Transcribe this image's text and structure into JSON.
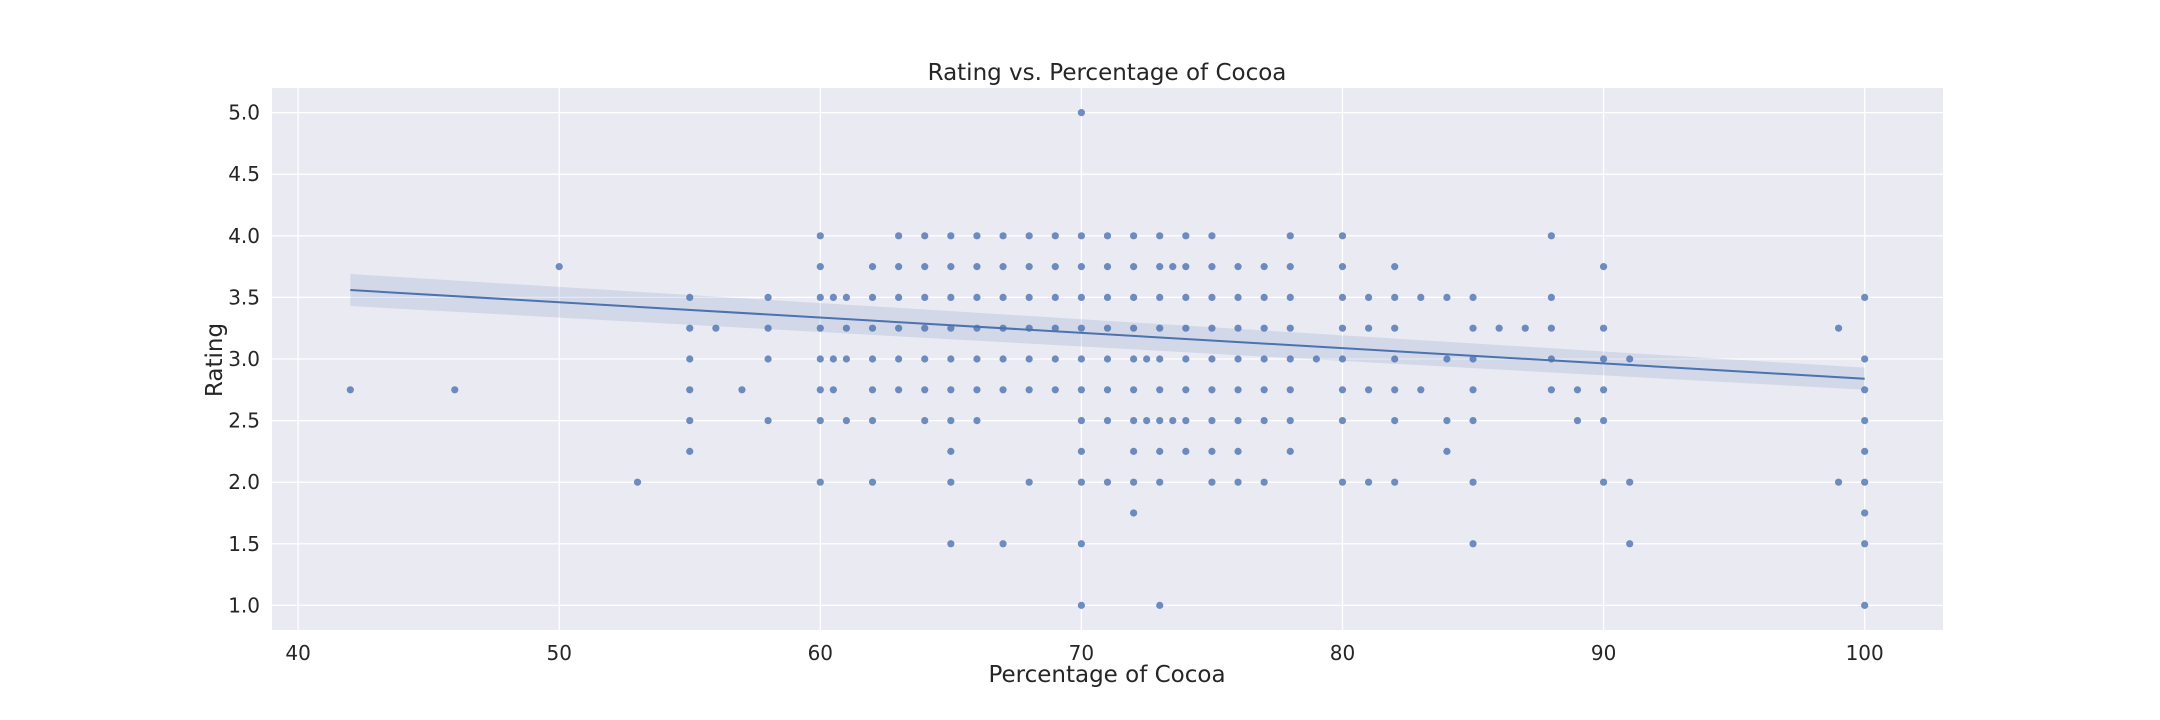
{
  "colors": {
    "background": "#ffffff",
    "plot_background": "#eaeaf2",
    "grid": "#ffffff",
    "points": "#4c72b0",
    "regression_line": "#4c72b0",
    "confidence_band": "#4c72b0",
    "text": "#262626"
  },
  "chart_data": {
    "type": "scatter",
    "title": "Rating vs. Percentage of Cocoa",
    "xlabel": "Percentage of Cocoa",
    "ylabel": "Rating",
    "xlim": [
      39,
      103
    ],
    "ylim": [
      0.8,
      5.2
    ],
    "xticks": [
      40,
      50,
      60,
      70,
      80,
      90,
      100
    ],
    "yticks": [
      1.0,
      1.5,
      2.0,
      2.5,
      3.0,
      3.5,
      4.0,
      4.5,
      5.0
    ],
    "ytick_labels": [
      "1.0",
      "1.5",
      "2.0",
      "2.5",
      "3.0",
      "3.5",
      "4.0",
      "4.5",
      "5.0"
    ],
    "grid": true,
    "series": [
      {
        "points": [
          [
            42,
            2.75
          ],
          [
            46,
            2.75
          ],
          [
            50,
            3.75
          ],
          [
            53,
            2.0
          ],
          [
            55,
            3.5
          ],
          [
            55,
            3.25
          ],
          [
            55,
            3.0
          ],
          [
            55,
            2.75
          ],
          [
            55,
            2.5
          ],
          [
            55,
            2.25
          ],
          [
            56,
            3.25
          ],
          [
            57,
            2.75
          ],
          [
            58,
            3.5
          ],
          [
            58,
            3.25
          ],
          [
            58,
            3.0
          ],
          [
            58,
            2.5
          ],
          [
            60,
            4.0
          ],
          [
            60,
            3.75
          ],
          [
            60,
            3.5
          ],
          [
            60,
            3.25
          ],
          [
            60,
            3.0
          ],
          [
            60,
            2.75
          ],
          [
            60,
            2.5
          ],
          [
            60,
            2.0
          ],
          [
            60.5,
            3.5
          ],
          [
            60.5,
            3.0
          ],
          [
            60.5,
            2.75
          ],
          [
            61,
            3.5
          ],
          [
            61,
            3.25
          ],
          [
            61,
            3.0
          ],
          [
            61,
            2.5
          ],
          [
            62,
            3.75
          ],
          [
            62,
            3.5
          ],
          [
            62,
            3.25
          ],
          [
            62,
            3.0
          ],
          [
            62,
            2.75
          ],
          [
            62,
            2.5
          ],
          [
            62,
            2.0
          ],
          [
            63,
            4.0
          ],
          [
            63,
            3.75
          ],
          [
            63,
            3.5
          ],
          [
            63,
            3.25
          ],
          [
            63,
            3.0
          ],
          [
            63,
            2.75
          ],
          [
            64,
            4.0
          ],
          [
            64,
            3.75
          ],
          [
            64,
            3.5
          ],
          [
            64,
            3.25
          ],
          [
            64,
            3.0
          ],
          [
            64,
            2.75
          ],
          [
            64,
            2.5
          ],
          [
            65,
            4.0
          ],
          [
            65,
            3.75
          ],
          [
            65,
            3.5
          ],
          [
            65,
            3.25
          ],
          [
            65,
            3.0
          ],
          [
            65,
            2.75
          ],
          [
            65,
            2.5
          ],
          [
            65,
            2.25
          ],
          [
            65,
            2.0
          ],
          [
            65,
            1.5
          ],
          [
            66,
            4.0
          ],
          [
            66,
            3.75
          ],
          [
            66,
            3.5
          ],
          [
            66,
            3.25
          ],
          [
            66,
            3.0
          ],
          [
            66,
            2.75
          ],
          [
            66,
            2.5
          ],
          [
            67,
            4.0
          ],
          [
            67,
            3.75
          ],
          [
            67,
            3.5
          ],
          [
            67,
            3.25
          ],
          [
            67,
            3.0
          ],
          [
            67,
            2.75
          ],
          [
            67,
            1.5
          ],
          [
            68,
            4.0
          ],
          [
            68,
            3.75
          ],
          [
            68,
            3.5
          ],
          [
            68,
            3.25
          ],
          [
            68,
            3.0
          ],
          [
            68,
            2.75
          ],
          [
            68,
            2.0
          ],
          [
            69,
            4.0
          ],
          [
            69,
            3.75
          ],
          [
            69,
            3.5
          ],
          [
            69,
            3.25
          ],
          [
            69,
            3.0
          ],
          [
            69,
            2.75
          ],
          [
            70,
            5.0
          ],
          [
            70,
            4.0
          ],
          [
            70,
            3.75
          ],
          [
            70,
            3.5
          ],
          [
            70,
            3.25
          ],
          [
            70,
            3.0
          ],
          [
            70,
            2.75
          ],
          [
            70,
            2.5
          ],
          [
            70,
            2.25
          ],
          [
            70,
            2.0
          ],
          [
            70,
            1.5
          ],
          [
            70,
            1.0
          ],
          [
            71,
            4.0
          ],
          [
            71,
            3.75
          ],
          [
            71,
            3.5
          ],
          [
            71,
            3.25
          ],
          [
            71,
            3.0
          ],
          [
            71,
            2.75
          ],
          [
            71,
            2.5
          ],
          [
            71,
            2.0
          ],
          [
            72,
            4.0
          ],
          [
            72,
            3.75
          ],
          [
            72,
            3.5
          ],
          [
            72,
            3.25
          ],
          [
            72,
            3.0
          ],
          [
            72,
            2.75
          ],
          [
            72,
            2.5
          ],
          [
            72,
            2.25
          ],
          [
            72,
            2.0
          ],
          [
            72,
            1.75
          ],
          [
            72.5,
            3.0
          ],
          [
            72.5,
            2.5
          ],
          [
            73,
            4.0
          ],
          [
            73,
            3.75
          ],
          [
            73,
            3.5
          ],
          [
            73,
            3.25
          ],
          [
            73,
            3.0
          ],
          [
            73,
            2.75
          ],
          [
            73,
            2.5
          ],
          [
            73,
            2.25
          ],
          [
            73,
            2.0
          ],
          [
            73,
            1.0
          ],
          [
            73.5,
            3.75
          ],
          [
            73.5,
            2.5
          ],
          [
            74,
            4.0
          ],
          [
            74,
            3.75
          ],
          [
            74,
            3.5
          ],
          [
            74,
            3.25
          ],
          [
            74,
            3.0
          ],
          [
            74,
            2.75
          ],
          [
            74,
            2.5
          ],
          [
            74,
            2.25
          ],
          [
            75,
            4.0
          ],
          [
            75,
            3.75
          ],
          [
            75,
            3.5
          ],
          [
            75,
            3.25
          ],
          [
            75,
            3.0
          ],
          [
            75,
            2.75
          ],
          [
            75,
            2.5
          ],
          [
            75,
            2.25
          ],
          [
            75,
            2.0
          ],
          [
            76,
            3.75
          ],
          [
            76,
            3.5
          ],
          [
            76,
            3.25
          ],
          [
            76,
            3.0
          ],
          [
            76,
            2.75
          ],
          [
            76,
            2.5
          ],
          [
            76,
            2.25
          ],
          [
            76,
            2.0
          ],
          [
            77,
            3.75
          ],
          [
            77,
            3.5
          ],
          [
            77,
            3.25
          ],
          [
            77,
            3.0
          ],
          [
            77,
            2.75
          ],
          [
            77,
            2.5
          ],
          [
            77,
            2.0
          ],
          [
            78,
            4.0
          ],
          [
            78,
            3.75
          ],
          [
            78,
            3.5
          ],
          [
            78,
            3.25
          ],
          [
            78,
            3.0
          ],
          [
            78,
            2.75
          ],
          [
            78,
            2.5
          ],
          [
            78,
            2.25
          ],
          [
            79,
            3.0
          ],
          [
            80,
            4.0
          ],
          [
            80,
            3.75
          ],
          [
            80,
            3.5
          ],
          [
            80,
            3.25
          ],
          [
            80,
            3.0
          ],
          [
            80,
            2.75
          ],
          [
            80,
            2.5
          ],
          [
            80,
            2.0
          ],
          [
            81,
            3.5
          ],
          [
            81,
            3.25
          ],
          [
            81,
            2.75
          ],
          [
            81,
            2.0
          ],
          [
            82,
            3.75
          ],
          [
            82,
            3.5
          ],
          [
            82,
            3.25
          ],
          [
            82,
            3.0
          ],
          [
            82,
            2.75
          ],
          [
            82,
            2.5
          ],
          [
            82,
            2.0
          ],
          [
            83,
            3.5
          ],
          [
            83,
            2.75
          ],
          [
            84,
            3.5
          ],
          [
            84,
            3.0
          ],
          [
            84,
            2.5
          ],
          [
            84,
            2.25
          ],
          [
            85,
            3.5
          ],
          [
            85,
            3.25
          ],
          [
            85,
            3.0
          ],
          [
            85,
            2.75
          ],
          [
            85,
            2.5
          ],
          [
            85,
            2.0
          ],
          [
            85,
            1.5
          ],
          [
            86,
            3.25
          ],
          [
            87,
            3.25
          ],
          [
            88,
            4.0
          ],
          [
            88,
            3.5
          ],
          [
            88,
            3.25
          ],
          [
            88,
            3.0
          ],
          [
            88,
            2.75
          ],
          [
            89,
            2.75
          ],
          [
            89,
            2.5
          ],
          [
            90,
            3.75
          ],
          [
            90,
            3.25
          ],
          [
            90,
            3.0
          ],
          [
            90,
            2.75
          ],
          [
            90,
            2.5
          ],
          [
            90,
            2.0
          ],
          [
            91,
            3.0
          ],
          [
            91,
            2.0
          ],
          [
            91,
            1.5
          ],
          [
            99,
            3.25
          ],
          [
            99,
            2.0
          ],
          [
            100,
            3.5
          ],
          [
            100,
            3.0
          ],
          [
            100,
            2.75
          ],
          [
            100,
            2.5
          ],
          [
            100,
            2.25
          ],
          [
            100,
            2.0
          ],
          [
            100,
            1.75
          ],
          [
            100,
            1.5
          ],
          [
            100,
            1.0
          ]
        ]
      }
    ],
    "regression": {
      "x": [
        42,
        100
      ],
      "y": [
        3.56,
        2.84
      ],
      "ci_upper": [
        3.69,
        2.93
      ],
      "ci_lower": [
        3.43,
        2.75
      ]
    }
  }
}
